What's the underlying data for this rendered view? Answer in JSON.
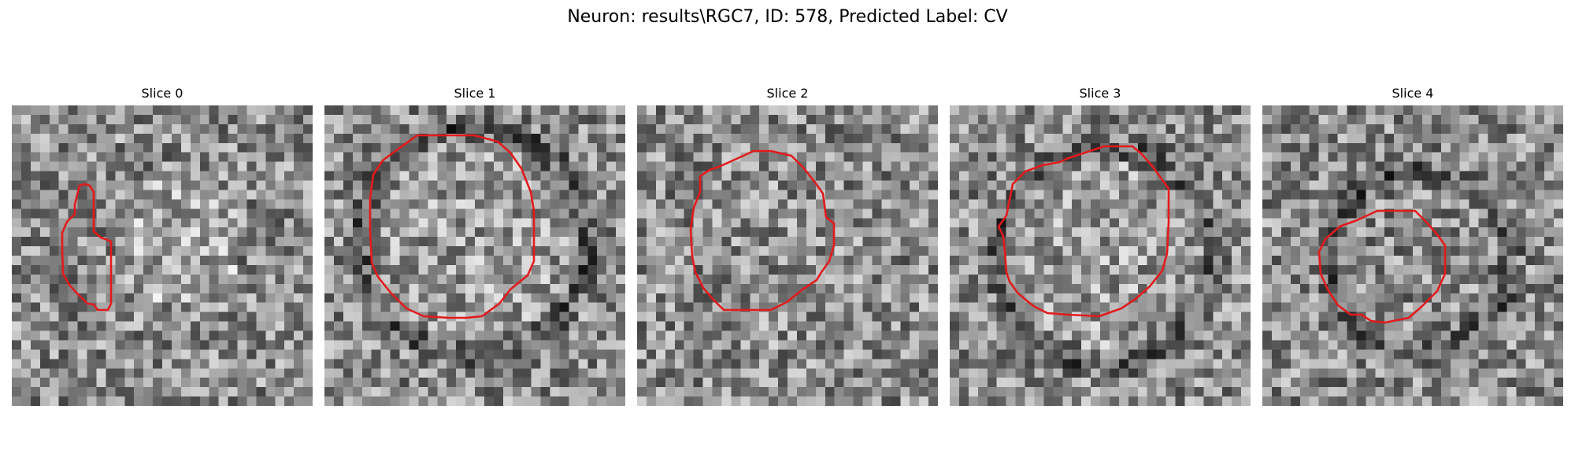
{
  "figure": {
    "title": "Neuron: results\\RGC7, ID: 578, Predicted Label: CV",
    "contour_color": "#e31a1c",
    "colormap": "gray",
    "panels": [
      {
        "title": "Slice 0"
      },
      {
        "title": "Slice 1"
      },
      {
        "title": "Slice 2"
      },
      {
        "title": "Slice 3"
      },
      {
        "title": "Slice 4"
      }
    ]
  }
}
